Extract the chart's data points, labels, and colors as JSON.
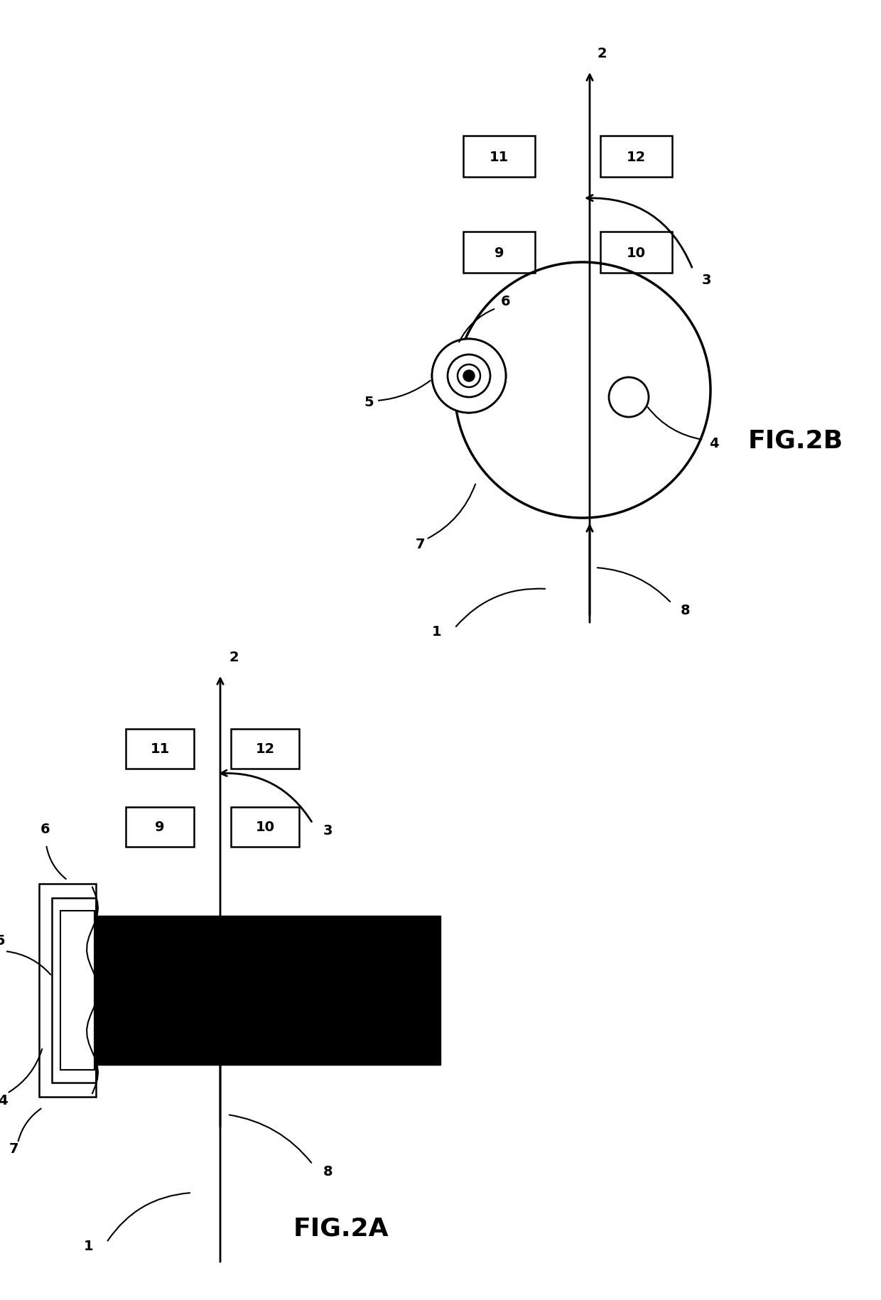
{
  "bg_color": "#ffffff",
  "fig_width": 12.4,
  "fig_height": 18.31,
  "fig2a_label": "FIG.2A",
  "fig2b_label": "FIG.2B",
  "labels": {
    "1": "1",
    "2": "2",
    "3": "3",
    "4": "4",
    "5": "5",
    "6": "6",
    "7": "7",
    "8": "8",
    "9": "9",
    "10": "10",
    "11": "11",
    "12": "12"
  }
}
